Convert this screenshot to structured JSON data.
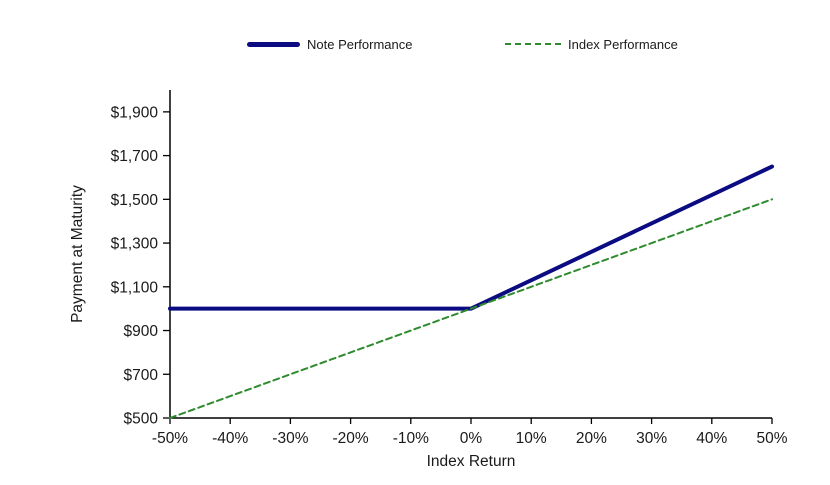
{
  "chart_data": {
    "type": "line",
    "title": "",
    "xlabel": "Index Return",
    "ylabel": "Payment at Maturity",
    "xlim": [
      -50,
      50
    ],
    "ylim": [
      500,
      2000
    ],
    "x_ticks": [
      -50,
      -40,
      -30,
      -20,
      -10,
      0,
      10,
      20,
      30,
      40,
      50
    ],
    "x_tick_labels": [
      "-50%",
      "-40%",
      "-30%",
      "-20%",
      "-10%",
      "0%",
      "10%",
      "20%",
      "30%",
      "40%",
      "50%"
    ],
    "y_ticks": [
      500,
      700,
      900,
      1100,
      1300,
      1500,
      1700,
      1900
    ],
    "y_tick_labels": [
      "$500",
      "$700",
      "$900",
      "$1,100",
      "$1,300",
      "$1,500",
      "$1,700",
      "$1,900"
    ],
    "grid": false,
    "legend_position": "top-center",
    "series": [
      {
        "name": "Note Performance",
        "style": "solid",
        "color": "#0b0b82",
        "width": 4,
        "points": [
          [
            -50,
            1000
          ],
          [
            0,
            1000
          ],
          [
            50,
            1650
          ]
        ]
      },
      {
        "name": "Index Performance",
        "style": "dashed",
        "color": "#2e8b2e",
        "width": 2,
        "points": [
          [
            -50,
            500
          ],
          [
            50,
            1500
          ]
        ]
      }
    ]
  },
  "colors": {
    "axis": "#000000",
    "background": "#ffffff",
    "note_line": "#0b0b82",
    "index_line": "#2e8b2e"
  }
}
